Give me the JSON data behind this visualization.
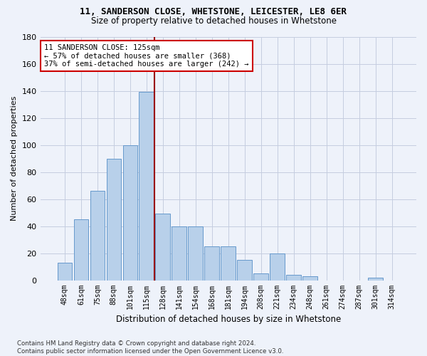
{
  "title1": "11, SANDERSON CLOSE, WHETSTONE, LEICESTER, LE8 6ER",
  "title2": "Size of property relative to detached houses in Whetstone",
  "xlabel": "Distribution of detached houses by size in Whetstone",
  "ylabel": "Number of detached properties",
  "bar_labels": [
    "48sqm",
    "61sqm",
    "75sqm",
    "88sqm",
    "101sqm",
    "115sqm",
    "128sqm",
    "141sqm",
    "154sqm",
    "168sqm",
    "181sqm",
    "194sqm",
    "208sqm",
    "221sqm",
    "234sqm",
    "248sqm",
    "261sqm",
    "274sqm",
    "287sqm",
    "301sqm",
    "314sqm"
  ],
  "bar_values": [
    13,
    45,
    66,
    90,
    100,
    139,
    49,
    40,
    40,
    25,
    25,
    15,
    5,
    20,
    4,
    3,
    0,
    0,
    0,
    2,
    0
  ],
  "bar_color": "#b8d0ea",
  "bar_edge_color": "#6699cc",
  "vline_index": 6,
  "vline_color": "#990000",
  "annotation_text": "11 SANDERSON CLOSE: 125sqm\n← 57% of detached houses are smaller (368)\n37% of semi-detached houses are larger (242) →",
  "annotation_box_color": "#ffffff",
  "annotation_box_edge": "#cc0000",
  "ylim": [
    0,
    180
  ],
  "yticks": [
    0,
    20,
    40,
    60,
    80,
    100,
    120,
    140,
    160,
    180
  ],
  "footnote": "Contains HM Land Registry data © Crown copyright and database right 2024.\nContains public sector information licensed under the Open Government Licence v3.0.",
  "bg_color": "#eef2fa",
  "grid_color": "#c5cde0"
}
